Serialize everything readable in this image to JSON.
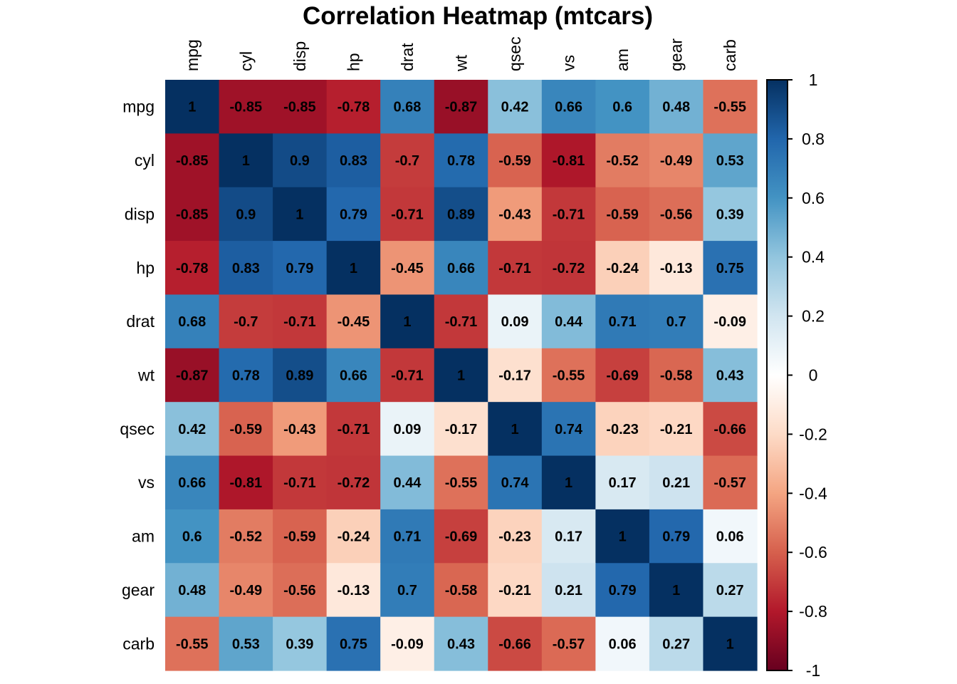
{
  "chart_data": {
    "type": "heatmap",
    "title": "Correlation Heatmap (mtcars)",
    "xlabel": "",
    "ylabel": "",
    "variables": [
      "mpg",
      "cyl",
      "disp",
      "hp",
      "drat",
      "wt",
      "qsec",
      "vs",
      "am",
      "gear",
      "carb"
    ],
    "x_tick_labels": [
      "mpg",
      "cyl",
      "disp",
      "hp",
      "drat",
      "wt",
      "qsec",
      "vs",
      "am",
      "gear",
      "carb"
    ],
    "y_tick_labels": [
      "mpg",
      "cyl",
      "disp",
      "hp",
      "drat",
      "wt",
      "qsec",
      "vs",
      "am",
      "gear",
      "carb"
    ],
    "x_labels_rotated": true,
    "values": [
      [
        1,
        -0.85,
        -0.85,
        -0.78,
        0.68,
        -0.87,
        0.42,
        0.66,
        0.6,
        0.48,
        -0.55
      ],
      [
        -0.85,
        1,
        0.9,
        0.83,
        -0.7,
        0.78,
        -0.59,
        -0.81,
        -0.52,
        -0.49,
        0.53
      ],
      [
        -0.85,
        0.9,
        1,
        0.79,
        -0.71,
        0.89,
        -0.43,
        -0.71,
        -0.59,
        -0.56,
        0.39
      ],
      [
        -0.78,
        0.83,
        0.79,
        1,
        -0.45,
        0.66,
        -0.71,
        -0.72,
        -0.24,
        -0.13,
        0.75
      ],
      [
        0.68,
        -0.7,
        -0.71,
        -0.45,
        1,
        -0.71,
        0.09,
        0.44,
        0.71,
        0.7,
        -0.09
      ],
      [
        -0.87,
        0.78,
        0.89,
        0.66,
        -0.71,
        1,
        -0.17,
        -0.55,
        -0.69,
        -0.58,
        0.43
      ],
      [
        0.42,
        -0.59,
        -0.43,
        -0.71,
        0.09,
        -0.17,
        1,
        0.74,
        -0.23,
        -0.21,
        -0.66
      ],
      [
        0.66,
        -0.81,
        -0.71,
        -0.72,
        0.44,
        -0.55,
        0.74,
        1,
        0.17,
        0.21,
        -0.57
      ],
      [
        0.6,
        -0.52,
        -0.59,
        -0.24,
        0.71,
        -0.69,
        -0.23,
        0.17,
        1,
        0.79,
        0.06
      ],
      [
        0.48,
        -0.49,
        -0.56,
        -0.13,
        0.7,
        -0.58,
        -0.21,
        0.21,
        0.79,
        1,
        0.27
      ],
      [
        -0.55,
        0.53,
        0.39,
        0.75,
        -0.09,
        0.43,
        -0.66,
        -0.57,
        0.06,
        0.27,
        1
      ]
    ],
    "value_range": [
      -1,
      1
    ],
    "show_cell_labels": true,
    "grid": false,
    "colorbar": {
      "placement": "right",
      "range": [
        -1,
        1
      ],
      "ticks": [
        1,
        0.8,
        0.6,
        0.4,
        0.2,
        0,
        -0.2,
        -0.4,
        -0.6,
        -0.8,
        -1
      ],
      "tick_labels": [
        "1",
        "0.8",
        "0.6",
        "0.4",
        "0.2",
        "0",
        "-0.2",
        "-0.4",
        "-0.6",
        "-0.8",
        "-1"
      ]
    },
    "colormap": {
      "name": "RdBu",
      "stops": [
        {
          "value": -1.0,
          "color": "#67001f"
        },
        {
          "value": -0.8,
          "color": "#b2182b"
        },
        {
          "value": -0.6,
          "color": "#d6604d"
        },
        {
          "value": -0.4,
          "color": "#f4a582"
        },
        {
          "value": -0.2,
          "color": "#fddbc7"
        },
        {
          "value": 0.0,
          "color": "#ffffff"
        },
        {
          "value": 0.2,
          "color": "#d1e5f0"
        },
        {
          "value": 0.4,
          "color": "#92c5de"
        },
        {
          "value": 0.6,
          "color": "#4393c3"
        },
        {
          "value": 0.8,
          "color": "#2166ac"
        },
        {
          "value": 1.0,
          "color": "#053061"
        }
      ]
    }
  }
}
